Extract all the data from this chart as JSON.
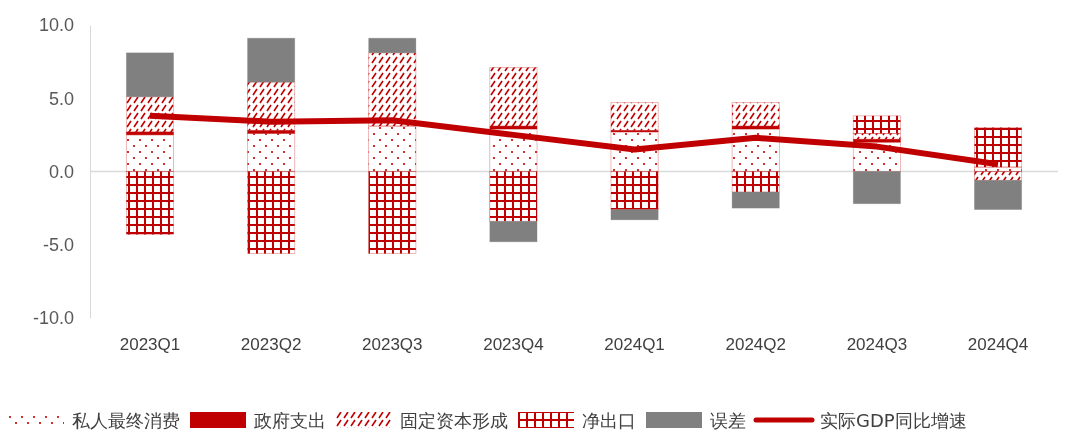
{
  "chart_data": {
    "type": "bar",
    "stacked": true,
    "categories": [
      "2023Q1",
      "2023Q2",
      "2023Q3",
      "2023Q4",
      "2024Q1",
      "2024Q2",
      "2024Q3",
      "2024Q4"
    ],
    "ylim": [
      -10,
      10
    ],
    "yticks": [
      {
        "value": -10,
        "label": "-10.0"
      },
      {
        "value": -5,
        "label": "-5.0"
      },
      {
        "value": 0,
        "label": "0.0"
      },
      {
        "value": 5,
        "label": "5.0"
      },
      {
        "value": 10,
        "label": "10.0"
      }
    ],
    "grid": false,
    "legend": "bottom",
    "ref_lines": [
      {
        "axis": "y",
        "value": 0,
        "color": "#d9d9d9"
      }
    ],
    "series": [
      {
        "name": "私人最终消费",
        "color": "#c00000",
        "values": [
          2.5,
          2.6,
          3.1,
          2.9,
          2.7,
          2.9,
          2.0,
          0.3
        ]
      },
      {
        "name": "政府支出",
        "color": "#c00000",
        "values": [
          0.2,
          0.2,
          0.0,
          0.2,
          0.1,
          0.2,
          0.2,
          0.0
        ]
      },
      {
        "name": "固定资本形成",
        "color": "#c00000",
        "values": [
          2.4,
          3.3,
          5.0,
          4.0,
          1.9,
          1.6,
          0.4,
          -0.6
        ]
      },
      {
        "name": "净出口",
        "color": "#c00000",
        "values": [
          -4.3,
          -5.6,
          -5.6,
          -3.4,
          -2.6,
          -1.4,
          1.2,
          2.7
        ]
      },
      {
        "name": "误差",
        "color": "#808080",
        "values": [
          3.0,
          3.0,
          1.0,
          -1.4,
          -0.7,
          -1.1,
          -2.2,
          -2.0
        ]
      },
      {
        "name": "实际GDP同比增速",
        "type": "line",
        "color": "#c00000",
        "marker": "none",
        "line_style": "solid",
        "values": [
          3.8,
          3.4,
          3.5,
          2.5,
          1.5,
          2.3,
          1.7,
          0.5
        ]
      }
    ]
  }
}
